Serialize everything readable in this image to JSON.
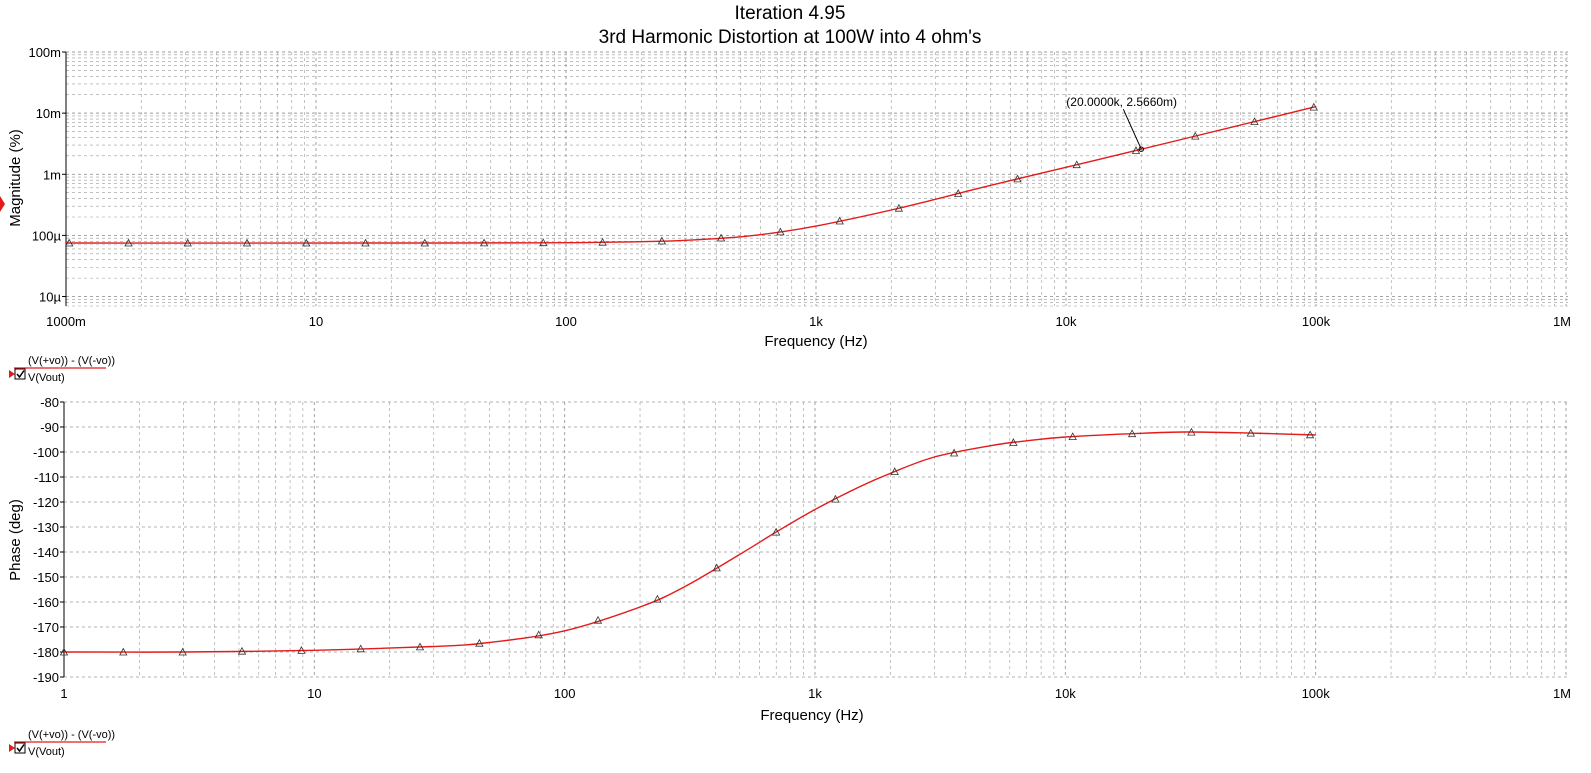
{
  "title": "Iteration 4.95",
  "subtitle": "3rd Harmonic Distortion at 100W into 4 ohm's",
  "colors": {
    "trace": "#e31b1b",
    "grid": "#9a9a9a",
    "axis": "#000000",
    "marker": "#333333",
    "legend_line": "#e31b1b"
  },
  "chart_data": [
    {
      "type": "line",
      "name": "magnitude",
      "title": "",
      "xlabel": "Frequency (Hz)",
      "ylabel": "Magnitude (%)",
      "xscale": "log",
      "yscale": "log",
      "xlim": [
        1,
        1000000
      ],
      "ylim": [
        7e-06,
        0.1
      ],
      "grid": true,
      "x_ticks": [
        1,
        10,
        100,
        1000,
        10000,
        100000,
        1000000
      ],
      "x_tick_labels": [
        "1000m",
        "10",
        "100",
        "1k",
        "10k",
        "100k",
        "1M"
      ],
      "y_ticks": [
        1e-05,
        0.0001,
        0.001,
        0.01,
        0.1
      ],
      "y_tick_labels": [
        "10µ",
        "100µ",
        "1m",
        "10m",
        "100m"
      ],
      "legend": {
        "expression": "(V(+vo)) - (V(-vo))",
        "denominator": "V(Vout)"
      },
      "annotation": {
        "text": "(20.0000k, 2.5660m)",
        "x": 20000,
        "y": 0.002566
      },
      "series": [
        {
          "name": "(V(+vo)) - (V(-vo)) / V(Vout)",
          "x": [
            1,
            30,
            100,
            200,
            300,
            500,
            700,
            1000,
            2000,
            3000,
            5000,
            10000,
            20000,
            50000,
            100000
          ],
          "y": [
            7.5e-05,
            7.5e-05,
            7.6e-05,
            7.9e-05,
            8.3e-05,
            9.5e-05,
            0.000112,
            0.000142,
            0.00026,
            0.00039,
            0.00066,
            0.0013,
            0.002566,
            0.0064,
            0.0128
          ]
        }
      ]
    },
    {
      "type": "line",
      "name": "phase",
      "title": "",
      "xlabel": "Frequency (Hz)",
      "ylabel": "Phase (deg)",
      "xscale": "log",
      "yscale": "linear",
      "xlim": [
        1,
        1000000
      ],
      "ylim": [
        -190,
        -80
      ],
      "grid": true,
      "x_ticks": [
        1,
        10,
        100,
        1000,
        10000,
        100000,
        1000000
      ],
      "x_tick_labels": [
        "1",
        "10",
        "100",
        "1k",
        "10k",
        "100k",
        "1M"
      ],
      "y_ticks": [
        -190,
        -180,
        -170,
        -160,
        -150,
        -140,
        -130,
        -120,
        -110,
        -100,
        -90,
        -80
      ],
      "y_tick_labels": [
        "-190",
        "-180",
        "-170",
        "-160",
        "-150",
        "-140",
        "-130",
        "-120",
        "-110",
        "-100",
        "-90",
        "-80"
      ],
      "legend": {
        "expression": "(V(+vo)) - (V(-vo))",
        "denominator": "V(Vout)"
      },
      "series": [
        {
          "name": "(V(+vo)) - (V(-vo)) / V(Vout)",
          "x": [
            1,
            3,
            10,
            30,
            50,
            100,
            200,
            300,
            500,
            700,
            1000,
            1500,
            2000,
            3000,
            5000,
            7000,
            10000,
            20000,
            30000,
            50000,
            100000
          ],
          "y": [
            -180,
            -180,
            -179.3,
            -177.8,
            -176.2,
            -171.5,
            -162,
            -154,
            -141,
            -132,
            -123,
            -114,
            -108.5,
            -102,
            -97.5,
            -95.5,
            -94,
            -92.5,
            -92,
            -92.3,
            -93.2
          ]
        }
      ]
    }
  ]
}
